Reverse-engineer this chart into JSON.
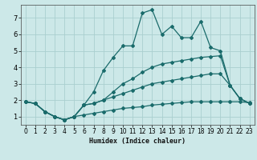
{
  "xlabel": "Humidex (Indice chaleur)",
  "background_color": "#cce8e8",
  "grid_color": "#aacfcf",
  "line_color": "#1a6b6b",
  "xlim": [
    -0.5,
    23.5
  ],
  "ylim": [
    0.5,
    7.8
  ],
  "xticks": [
    0,
    1,
    2,
    3,
    4,
    5,
    6,
    7,
    8,
    9,
    10,
    11,
    12,
    13,
    14,
    15,
    16,
    17,
    18,
    19,
    20,
    21,
    22,
    23
  ],
  "yticks": [
    1,
    2,
    3,
    4,
    5,
    6,
    7
  ],
  "series": [
    {
      "x": [
        0,
        1,
        2,
        3,
        4,
        5,
        6,
        7,
        8,
        9,
        10,
        11,
        12,
        13,
        14,
        15,
        16,
        17,
        18,
        19,
        20,
        21,
        22,
        23
      ],
      "y": [
        1.9,
        1.8,
        1.3,
        1.0,
        0.8,
        1.0,
        1.1,
        1.2,
        1.3,
        1.4,
        1.5,
        1.55,
        1.6,
        1.7,
        1.75,
        1.8,
        1.85,
        1.9,
        1.9,
        1.9,
        1.9,
        1.9,
        1.9,
        1.85
      ]
    },
    {
      "x": [
        0,
        1,
        2,
        3,
        4,
        5,
        6,
        7,
        8,
        9,
        10,
        11,
        12,
        13,
        14,
        15,
        16,
        17,
        18,
        19,
        20,
        21,
        22,
        23
      ],
      "y": [
        1.9,
        1.8,
        1.3,
        1.0,
        0.8,
        1.0,
        1.7,
        1.8,
        2.0,
        2.2,
        2.4,
        2.6,
        2.8,
        3.0,
        3.1,
        3.2,
        3.3,
        3.4,
        3.5,
        3.6,
        3.6,
        2.9,
        2.1,
        1.8
      ]
    },
    {
      "x": [
        0,
        1,
        2,
        3,
        4,
        5,
        6,
        7,
        8,
        9,
        10,
        11,
        12,
        13,
        14,
        15,
        16,
        17,
        18,
        19,
        20,
        21,
        22,
        23
      ],
      "y": [
        1.9,
        1.8,
        1.3,
        1.0,
        0.8,
        1.0,
        1.7,
        1.8,
        2.0,
        2.5,
        3.0,
        3.3,
        3.7,
        4.0,
        4.2,
        4.3,
        4.4,
        4.5,
        4.6,
        4.65,
        4.7,
        2.9,
        2.1,
        1.8
      ]
    },
    {
      "x": [
        0,
        1,
        2,
        3,
        4,
        5,
        6,
        7,
        8,
        9,
        10,
        11,
        12,
        13,
        14,
        15,
        16,
        17,
        18,
        19,
        20,
        21,
        22,
        23
      ],
      "y": [
        1.9,
        1.8,
        1.3,
        1.0,
        0.8,
        1.0,
        1.7,
        2.5,
        3.8,
        4.6,
        5.3,
        5.3,
        7.3,
        7.5,
        6.0,
        6.5,
        5.8,
        5.8,
        6.8,
        5.2,
        5.0,
        2.9,
        2.1,
        1.8
      ]
    }
  ]
}
